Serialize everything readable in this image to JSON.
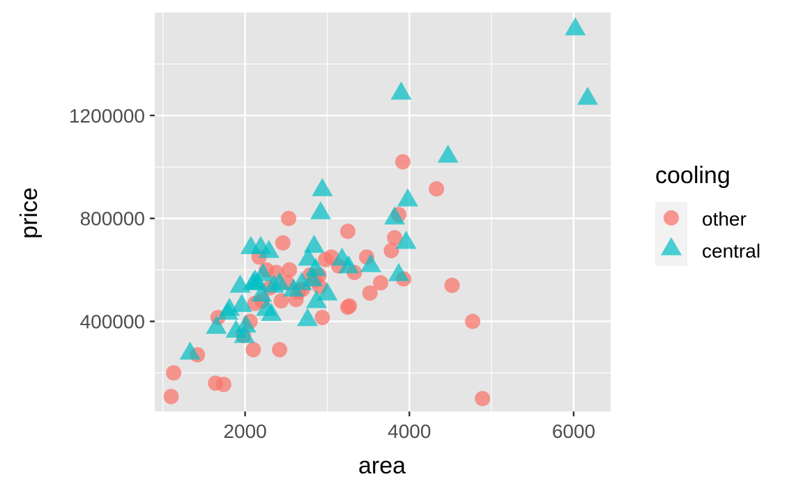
{
  "colors": {
    "panel": "#e5e5e5",
    "grid": "#ffffff",
    "other": "#f8766d",
    "central": "#00bfc4",
    "tick": "#333333"
  },
  "chart_data": {
    "type": "scatter",
    "xlabel": "area",
    "ylabel": "price",
    "xlim": [
      900,
      6450
    ],
    "ylim": [
      50000,
      1600000
    ],
    "x_ticks": [
      2000,
      4000,
      6000
    ],
    "x_tick_labels": [
      "2000",
      "4000",
      "6000"
    ],
    "y_ticks": [
      400000,
      800000,
      1200000
    ],
    "y_tick_labels": [
      "400000",
      "800000",
      "1200000"
    ],
    "grid": true,
    "legend": {
      "title": "cooling",
      "position": "right",
      "entries": [
        {
          "label": "other",
          "shape": "circle",
          "color": "#f8766d"
        },
        {
          "label": "central",
          "shape": "triangle",
          "color": "#00bfc4"
        }
      ]
    },
    "series": [
      {
        "name": "other",
        "shape": "circle",
        "color": "#f8766d",
        "points": [
          [
            1100,
            108000
          ],
          [
            1130,
            200000
          ],
          [
            1420,
            270000
          ],
          [
            1640,
            160000
          ],
          [
            1740,
            155000
          ],
          [
            1670,
            415000
          ],
          [
            1980,
            345000
          ],
          [
            2060,
            400000
          ],
          [
            2100,
            290000
          ],
          [
            2120,
            470000
          ],
          [
            2170,
            650000
          ],
          [
            2210,
            480000
          ],
          [
            2260,
            600000
          ],
          [
            2300,
            530000
          ],
          [
            2380,
            590000
          ],
          [
            2440,
            480000
          ],
          [
            2420,
            290000
          ],
          [
            2460,
            705000
          ],
          [
            2510,
            550000
          ],
          [
            2530,
            800000
          ],
          [
            2540,
            600000
          ],
          [
            2620,
            485000
          ],
          [
            2650,
            515000
          ],
          [
            2700,
            525000
          ],
          [
            2790,
            580000
          ],
          [
            2850,
            560000
          ],
          [
            2900,
            580000
          ],
          [
            2910,
            535000
          ],
          [
            2940,
            415000
          ],
          [
            2980,
            640000
          ],
          [
            3050,
            650000
          ],
          [
            3140,
            615000
          ],
          [
            3250,
            455000
          ],
          [
            3270,
            460000
          ],
          [
            3250,
            750000
          ],
          [
            3330,
            590000
          ],
          [
            3480,
            650000
          ],
          [
            3520,
            510000
          ],
          [
            3650,
            550000
          ],
          [
            3780,
            675000
          ],
          [
            3820,
            725000
          ],
          [
            3870,
            815000
          ],
          [
            3930,
            565000
          ],
          [
            3920,
            1020000
          ],
          [
            4330,
            915000
          ],
          [
            4520,
            540000
          ],
          [
            4770,
            400000
          ],
          [
            4890,
            100000
          ]
        ]
      },
      {
        "name": "central",
        "shape": "triangle",
        "color": "#00bfc4",
        "points": [
          [
            1330,
            275000
          ],
          [
            1650,
            375000
          ],
          [
            1790,
            430000
          ],
          [
            1810,
            445000
          ],
          [
            1890,
            360000
          ],
          [
            1940,
            535000
          ],
          [
            1960,
            460000
          ],
          [
            1990,
            340000
          ],
          [
            2010,
            380000
          ],
          [
            2070,
            685000
          ],
          [
            2100,
            545000
          ],
          [
            2120,
            555000
          ],
          [
            2150,
            545000
          ],
          [
            2190,
            685000
          ],
          [
            2200,
            500000
          ],
          [
            2220,
            580000
          ],
          [
            2260,
            445000
          ],
          [
            2290,
            670000
          ],
          [
            2320,
            425000
          ],
          [
            2350,
            535000
          ],
          [
            2420,
            545000
          ],
          [
            2590,
            520000
          ],
          [
            2690,
            545000
          ],
          [
            2760,
            405000
          ],
          [
            2770,
            640000
          ],
          [
            2820,
            560000
          ],
          [
            2840,
            690000
          ],
          [
            2860,
            600000
          ],
          [
            2870,
            475000
          ],
          [
            2920,
            820000
          ],
          [
            2940,
            910000
          ],
          [
            3000,
            505000
          ],
          [
            3180,
            640000
          ],
          [
            3260,
            610000
          ],
          [
            3530,
            615000
          ],
          [
            3820,
            800000
          ],
          [
            3870,
            580000
          ],
          [
            3900,
            1285000
          ],
          [
            3960,
            705000
          ],
          [
            3980,
            870000
          ],
          [
            4470,
            1040000
          ],
          [
            6020,
            1535000
          ],
          [
            6170,
            1265000
          ]
        ]
      }
    ]
  }
}
